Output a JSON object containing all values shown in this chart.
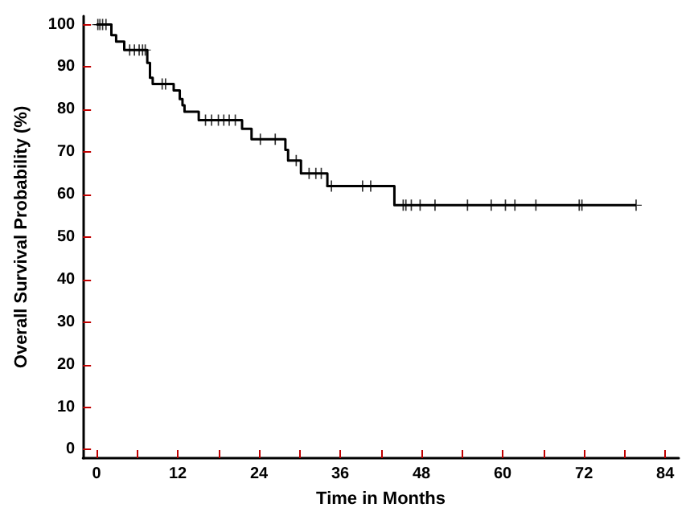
{
  "chart_data": {
    "type": "step",
    "xlabel": "Time in Months",
    "ylabel": "Overall Survival Probability (%)",
    "xlim": [
      -2,
      86
    ],
    "ylim": [
      -2,
      102
    ],
    "xticks": [
      0,
      {
        "value": 6,
        "label": null
      },
      12,
      {
        "value": 18,
        "label": null
      },
      24,
      {
        "value": 30,
        "label": null
      },
      36,
      {
        "value": 42,
        "label": null
      },
      48,
      {
        "value": 54,
        "label": null
      },
      60,
      {
        "value": 66,
        "label": null
      },
      72,
      {
        "value": 78,
        "label": null
      },
      84
    ],
    "yticks": [
      0,
      10,
      20,
      30,
      40,
      50,
      60,
      70,
      80,
      90,
      100
    ],
    "grid": false,
    "series": [
      {
        "color": "#000000",
        "x": [
          0,
          2.2,
          2.9,
          4.1,
          7.5,
          7.9,
          8.3,
          11.4,
          12.3,
          12.7,
          13.0,
          15.1,
          21.5,
          22.9,
          27.9,
          28.3,
          30.2,
          34.1,
          44.0,
          79.7
        ],
        "values": [
          100,
          97.5,
          96,
          94,
          91,
          87.5,
          86,
          84.5,
          82.5,
          81,
          79.5,
          77.5,
          75.5,
          73,
          70.5,
          68,
          65,
          62,
          57.5,
          57.5
        ]
      },
      {
        "type": "scatter",
        "marker": "cross",
        "color": "#000000",
        "x": [
          0.2,
          0.5,
          0.9,
          1.4,
          4.9,
          5.6,
          6.3,
          6.8,
          7.2,
          9.7,
          10.2,
          16.1,
          17.0,
          18.0,
          18.8,
          19.6,
          20.5,
          24.2,
          26.4,
          29.5,
          31.4,
          32.4,
          33.2,
          34.7,
          39.3,
          40.5,
          45.3,
          45.7,
          46.5,
          47.8,
          50.0,
          54.8,
          58.3,
          60.4,
          61.8,
          64.9,
          71.3,
          71.7,
          79.7
        ],
        "values": [
          100,
          100,
          100,
          100,
          94,
          94,
          94,
          94,
          94,
          86,
          86,
          77.5,
          77.5,
          77.5,
          77.5,
          77.5,
          77.5,
          73,
          73,
          68,
          65,
          65,
          65,
          62,
          62,
          62,
          57.5,
          57.5,
          57.5,
          57.5,
          57.5,
          57.5,
          57.5,
          57.5,
          57.5,
          57.5,
          57.5,
          57.5,
          57.5
        ]
      }
    ]
  }
}
